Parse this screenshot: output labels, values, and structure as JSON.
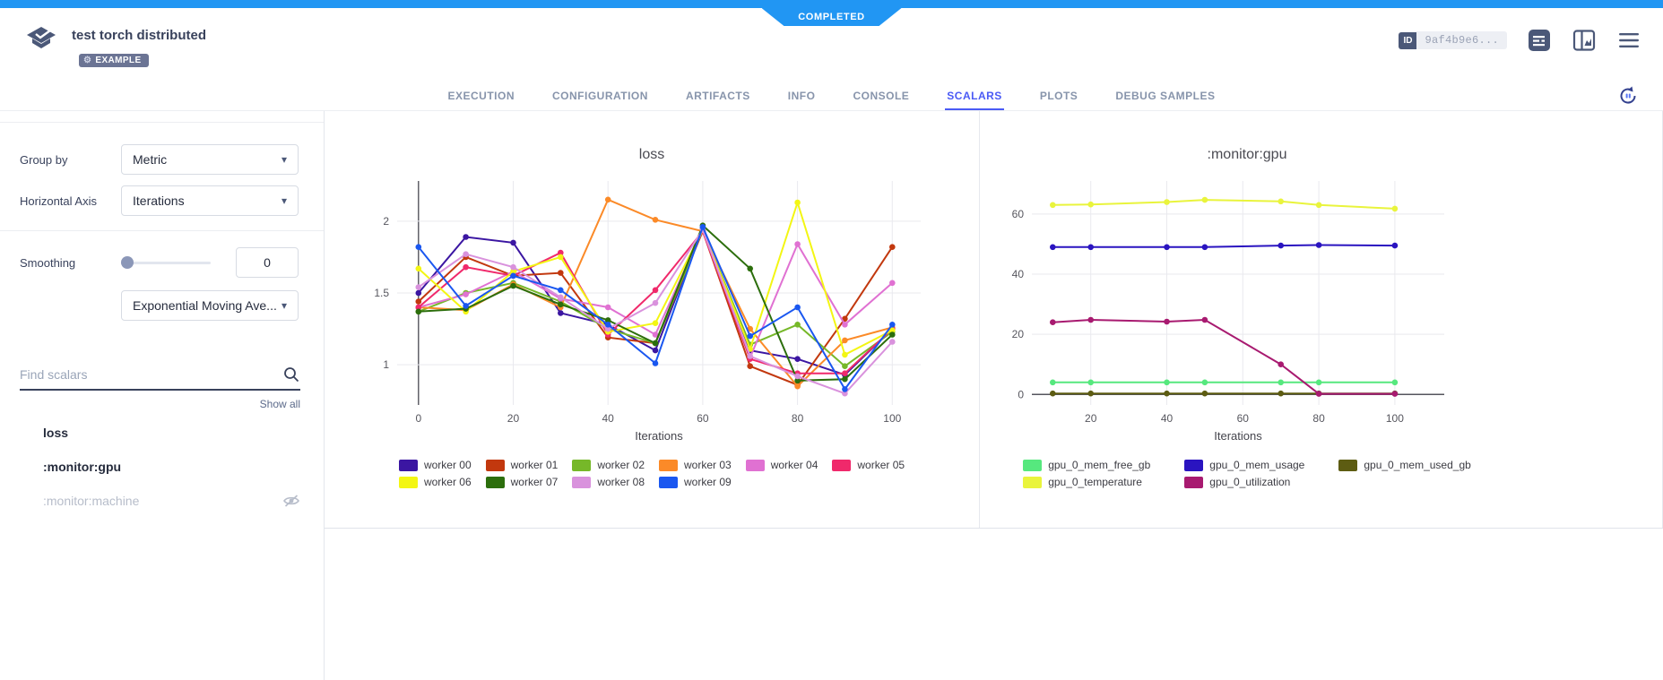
{
  "icons": {
    "gear": "⚙",
    "caret": "▾"
  },
  "header": {
    "status": "COMPLETED",
    "title": "test torch distributed",
    "badge_label": "EXAMPLE",
    "id_label": "ID",
    "id_value": "9af4b9e6..."
  },
  "tabs": [
    {
      "label": "EXECUTION"
    },
    {
      "label": "CONFIGURATION"
    },
    {
      "label": "ARTIFACTS"
    },
    {
      "label": "INFO"
    },
    {
      "label": "CONSOLE"
    },
    {
      "label": "SCALARS",
      "active": true
    },
    {
      "label": "PLOTS"
    },
    {
      "label": "DEBUG SAMPLES"
    }
  ],
  "sidebar": {
    "group_by_label": "Group by",
    "group_by_value": "Metric",
    "horizontal_axis_label": "Horizontal Axis",
    "horizontal_axis_value": "Iterations",
    "smoothing_label": "Smoothing",
    "smoothing_value": "0",
    "smoothing_method": "Exponential Moving Ave...",
    "search_placeholder": "Find scalars",
    "show_all_label": "Show all",
    "scalars": [
      {
        "label": "loss",
        "hidden": false
      },
      {
        "label": ":monitor:gpu",
        "hidden": false
      },
      {
        "label": ":monitor:machine",
        "hidden": true
      }
    ]
  },
  "chart_data": [
    {
      "type": "line",
      "title": "loss",
      "xlabel": "Iterations",
      "x": [
        0,
        10,
        20,
        30,
        40,
        50,
        60,
        70,
        80,
        90,
        100
      ],
      "x_ticks": [
        0,
        20,
        40,
        60,
        80,
        100
      ],
      "y_ticks": [
        1,
        1.5,
        2
      ],
      "xlim": [
        -4.5,
        106
      ],
      "ylim": [
        0.72,
        2.28
      ],
      "zeroline": "x",
      "legend_position": "bottom",
      "grid": true,
      "series": [
        {
          "name": "worker 00",
          "color": "#3b16a2",
          "values": [
            1.5,
            1.89,
            1.85,
            1.36,
            1.28,
            1.1,
            1.95,
            1.1,
            1.04,
            0.93,
            1.25
          ]
        },
        {
          "name": "worker 01",
          "color": "#c2380e",
          "values": [
            1.44,
            1.75,
            1.62,
            1.64,
            1.19,
            1.15,
            1.93,
            0.99,
            0.86,
            1.32,
            1.82
          ]
        },
        {
          "name": "worker 02",
          "color": "#76b829",
          "values": [
            1.37,
            1.5,
            1.57,
            1.44,
            1.25,
            1.15,
            1.94,
            1.14,
            1.28,
            0.99,
            1.23
          ]
        },
        {
          "name": "worker 03",
          "color": "#fb8a28",
          "values": [
            1.4,
            1.38,
            1.56,
            1.4,
            2.15,
            2.01,
            1.93,
            1.25,
            0.85,
            1.17,
            1.26
          ]
        },
        {
          "name": "worker 04",
          "color": "#e071d2",
          "values": [
            1.4,
            1.49,
            1.65,
            1.46,
            1.4,
            1.21,
            1.94,
            1.05,
            1.84,
            1.28,
            1.57
          ]
        },
        {
          "name": "worker 05",
          "color": "#f0296b",
          "values": [
            1.4,
            1.68,
            1.62,
            1.78,
            1.21,
            1.52,
            1.93,
            1.04,
            0.94,
            0.94,
            1.25
          ]
        },
        {
          "name": "worker 06",
          "color": "#f3f613",
          "values": [
            1.67,
            1.37,
            1.65,
            1.75,
            1.23,
            1.29,
            1.94,
            1.11,
            2.13,
            1.07,
            1.24
          ]
        },
        {
          "name": "worker 07",
          "color": "#2c6e0c",
          "values": [
            1.37,
            1.39,
            1.55,
            1.42,
            1.31,
            1.15,
            1.97,
            1.67,
            0.89,
            0.9,
            1.21
          ]
        },
        {
          "name": "worker 08",
          "color": "#d992dd",
          "values": [
            1.54,
            1.77,
            1.68,
            1.47,
            1.25,
            1.43,
            1.94,
            1.06,
            0.92,
            0.8,
            1.16
          ]
        },
        {
          "name": "worker 09",
          "color": "#1a57f0",
          "values": [
            1.82,
            1.41,
            1.62,
            1.52,
            1.28,
            1.01,
            1.96,
            1.2,
            1.4,
            0.83,
            1.28
          ]
        }
      ]
    },
    {
      "type": "line",
      "title": ":monitor:gpu",
      "xlabel": "Iterations",
      "x": [
        10,
        20,
        40,
        50,
        70,
        80,
        100
      ],
      "x_ticks": [
        20,
        40,
        60,
        80,
        100
      ],
      "y_ticks": [
        0,
        20,
        40,
        60
      ],
      "xlim": [
        4.5,
        113
      ],
      "ylim": [
        -3.5,
        71
      ],
      "zeroline": "y",
      "legend_position": "bottom",
      "grid": true,
      "series": [
        {
          "name": "gpu_0_mem_free_gb",
          "color": "#56e87e",
          "values": [
            4,
            4,
            4,
            4,
            4,
            4,
            4
          ]
        },
        {
          "name": "gpu_0_mem_usage",
          "color": "#2a14c0",
          "values": [
            49,
            49,
            49,
            49,
            49.5,
            49.7,
            49.5
          ]
        },
        {
          "name": "gpu_0_mem_used_gb",
          "color": "#5d5c12",
          "values": [
            0.3,
            0.3,
            0.3,
            0.3,
            0.3,
            0.3,
            0.3
          ]
        },
        {
          "name": "gpu_0_temperature",
          "color": "#e9f43c",
          "values": [
            63,
            63.2,
            64,
            64.7,
            64.2,
            63,
            61.8
          ]
        },
        {
          "name": "gpu_0_utilization",
          "color": "#a81a70",
          "values": [
            24,
            24.8,
            24.2,
            24.8,
            10,
            0.2,
            0.2
          ]
        }
      ]
    }
  ]
}
